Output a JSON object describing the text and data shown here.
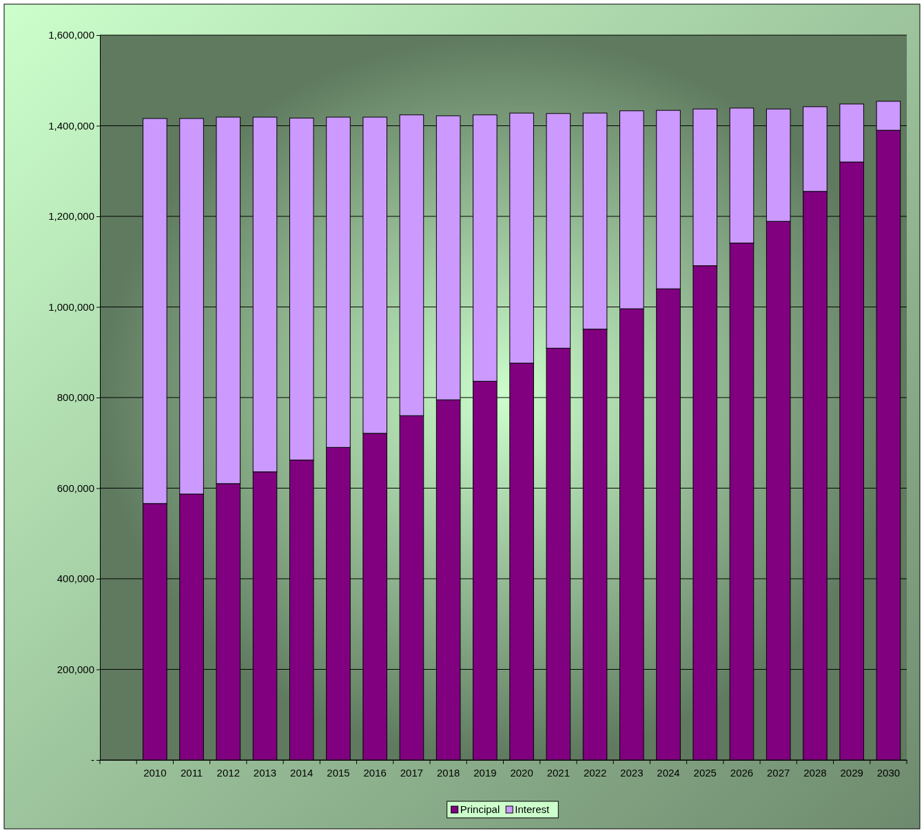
{
  "chart_data": {
    "type": "bar",
    "stacked": true,
    "categories": [
      null,
      "2010",
      "2011",
      "2012",
      "2013",
      "2014",
      "2015",
      "2016",
      "2017",
      "2018",
      "2019",
      "2020",
      "2021",
      "2022",
      "2023",
      "2024",
      "2025",
      "2026",
      "2027",
      "2028",
      "2029",
      "2030"
    ],
    "series": [
      {
        "name": "Principal",
        "color": "#800080",
        "values": [
          null,
          566000,
          587000,
          610000,
          636000,
          662000,
          690000,
          721000,
          760000,
          795000,
          836000,
          876000,
          909000,
          951000,
          996000,
          1040000,
          1091000,
          1141000,
          1189000,
          1255000,
          1320000,
          1390000
        ]
      },
      {
        "name": "Interest",
        "color": "#cc99ff",
        "values": [
          null,
          850000,
          829000,
          809000,
          783000,
          755000,
          729000,
          698000,
          664000,
          627000,
          588000,
          552000,
          518000,
          477000,
          437000,
          394000,
          346000,
          298000,
          248000,
          187000,
          128000,
          64000
        ]
      }
    ],
    "ylim": [
      0,
      1600000
    ],
    "yticks": [
      {
        "value": 0,
        "label": "-"
      },
      {
        "value": 200000,
        "label": "200,000"
      },
      {
        "value": 400000,
        "label": "400,000"
      },
      {
        "value": 600000,
        "label": "600,000"
      },
      {
        "value": 800000,
        "label": "800,000"
      },
      {
        "value": 1000000,
        "label": "1,000,000"
      },
      {
        "value": 1200000,
        "label": "1,200,000"
      },
      {
        "value": 1400000,
        "label": "1,400,000"
      },
      {
        "value": 1600000,
        "label": "1,600,000"
      }
    ],
    "grid": "y",
    "legend": "bottom"
  }
}
